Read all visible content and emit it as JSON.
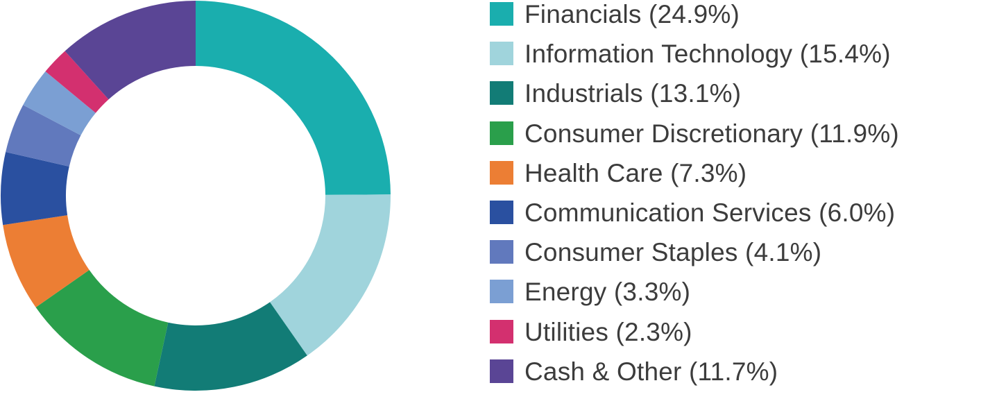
{
  "chart_data": {
    "type": "pie",
    "variant": "donut",
    "legend_position": "right",
    "slices": [
      {
        "label": "Financials (24.9%)",
        "name": "Financials",
        "value": 24.9,
        "color": "#1aaeae"
      },
      {
        "label": "Information Technology (15.4%)",
        "name": "Information Technology",
        "value": 15.4,
        "color": "#a0d4dc"
      },
      {
        "label": "Industrials (13.1%)",
        "name": "Industrials",
        "value": 13.1,
        "color": "#127c76"
      },
      {
        "label": "Consumer Discretionary (11.9%)",
        "name": "Consumer Discretionary",
        "value": 11.9,
        "color": "#2a9f4b"
      },
      {
        "label": "Health Care (7.3%)",
        "name": "Health Care",
        "value": 7.3,
        "color": "#ec7e34"
      },
      {
        "label": "Communication Services (6.0%)",
        "name": "Communication Services",
        "value": 6.0,
        "color": "#2a50a0"
      },
      {
        "label": "Consumer Staples (4.1%)",
        "name": "Consumer Staples",
        "value": 4.1,
        "color": "#6179bd"
      },
      {
        "label": "Energy (3.3%)",
        "name": "Energy",
        "value": 3.3,
        "color": "#7b9fd3"
      },
      {
        "label": "Utilities (2.3%)",
        "name": "Utilities",
        "value": 2.3,
        "color": "#d3306f"
      },
      {
        "label": "Cash & Other (11.7%)",
        "name": "Cash & Other",
        "value": 11.7,
        "color": "#5a4595"
      }
    ]
  }
}
